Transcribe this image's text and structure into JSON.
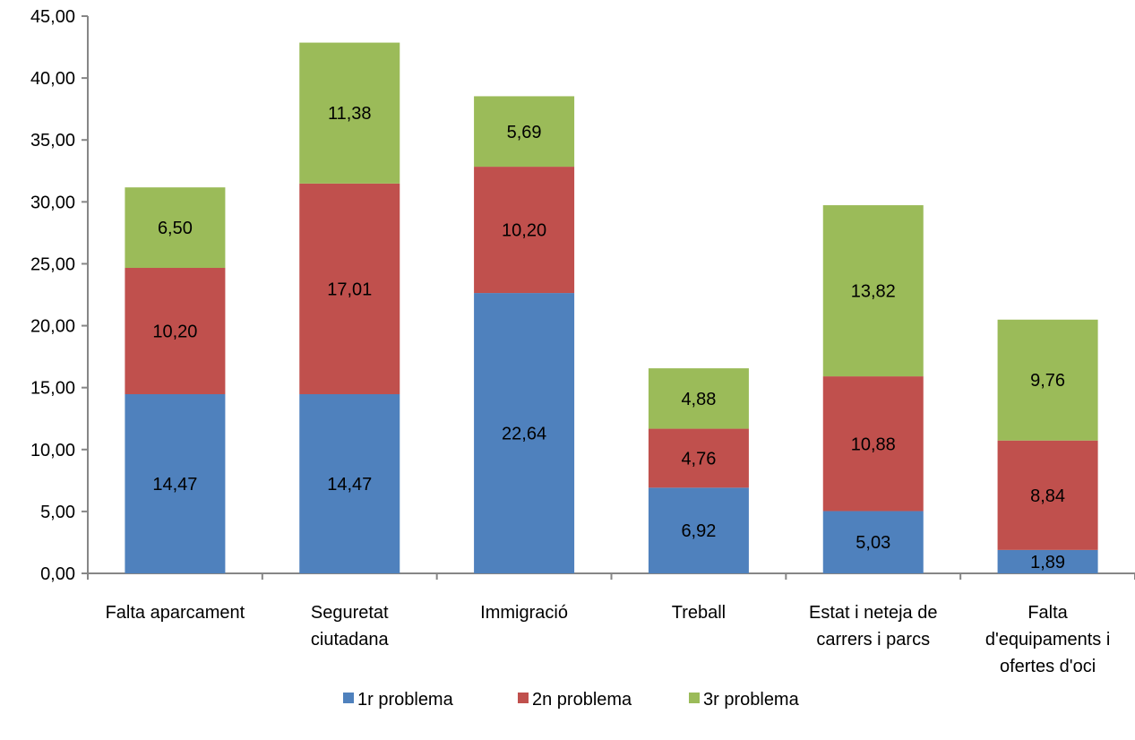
{
  "chart_data": {
    "type": "bar",
    "stacked": true,
    "categories": [
      [
        "Falta aparcament"
      ],
      [
        "Seguretat",
        "ciutadana"
      ],
      [
        "Immigració"
      ],
      [
        "Treball"
      ],
      [
        "Estat i neteja de",
        "carrers i parcs"
      ],
      [
        "Falta",
        "d'equipaments i",
        "ofertes d'oci"
      ]
    ],
    "series": [
      {
        "name": "1r problema",
        "color": "#4F81BD",
        "values": [
          14.47,
          14.47,
          22.64,
          6.92,
          5.03,
          1.89
        ]
      },
      {
        "name": "2n problema",
        "color": "#C0504D",
        "values": [
          10.2,
          17.01,
          10.2,
          4.76,
          10.88,
          8.84
        ]
      },
      {
        "name": "3r problema",
        "color": "#9BBB59",
        "values": [
          6.5,
          11.38,
          5.69,
          4.88,
          13.82,
          9.76
        ]
      }
    ],
    "ylim": [
      0,
      45
    ],
    "ytick_step": 5,
    "ytick_labels": [
      "0,00",
      "5,00",
      "10,00",
      "15,00",
      "20,00",
      "25,00",
      "30,00",
      "35,00",
      "40,00",
      "45,00"
    ],
    "data_labels": [
      [
        "14,47",
        "14,47",
        "22,64",
        "6,92",
        "5,03",
        "1,89"
      ],
      [
        "10,20",
        "17,01",
        "10,20",
        "4,76",
        "10,88",
        "8,84"
      ],
      [
        "6,50",
        "11,38",
        "5,69",
        "4,88",
        "13,82",
        "9,76"
      ]
    ],
    "grid": false,
    "legend_position": "bottom"
  }
}
